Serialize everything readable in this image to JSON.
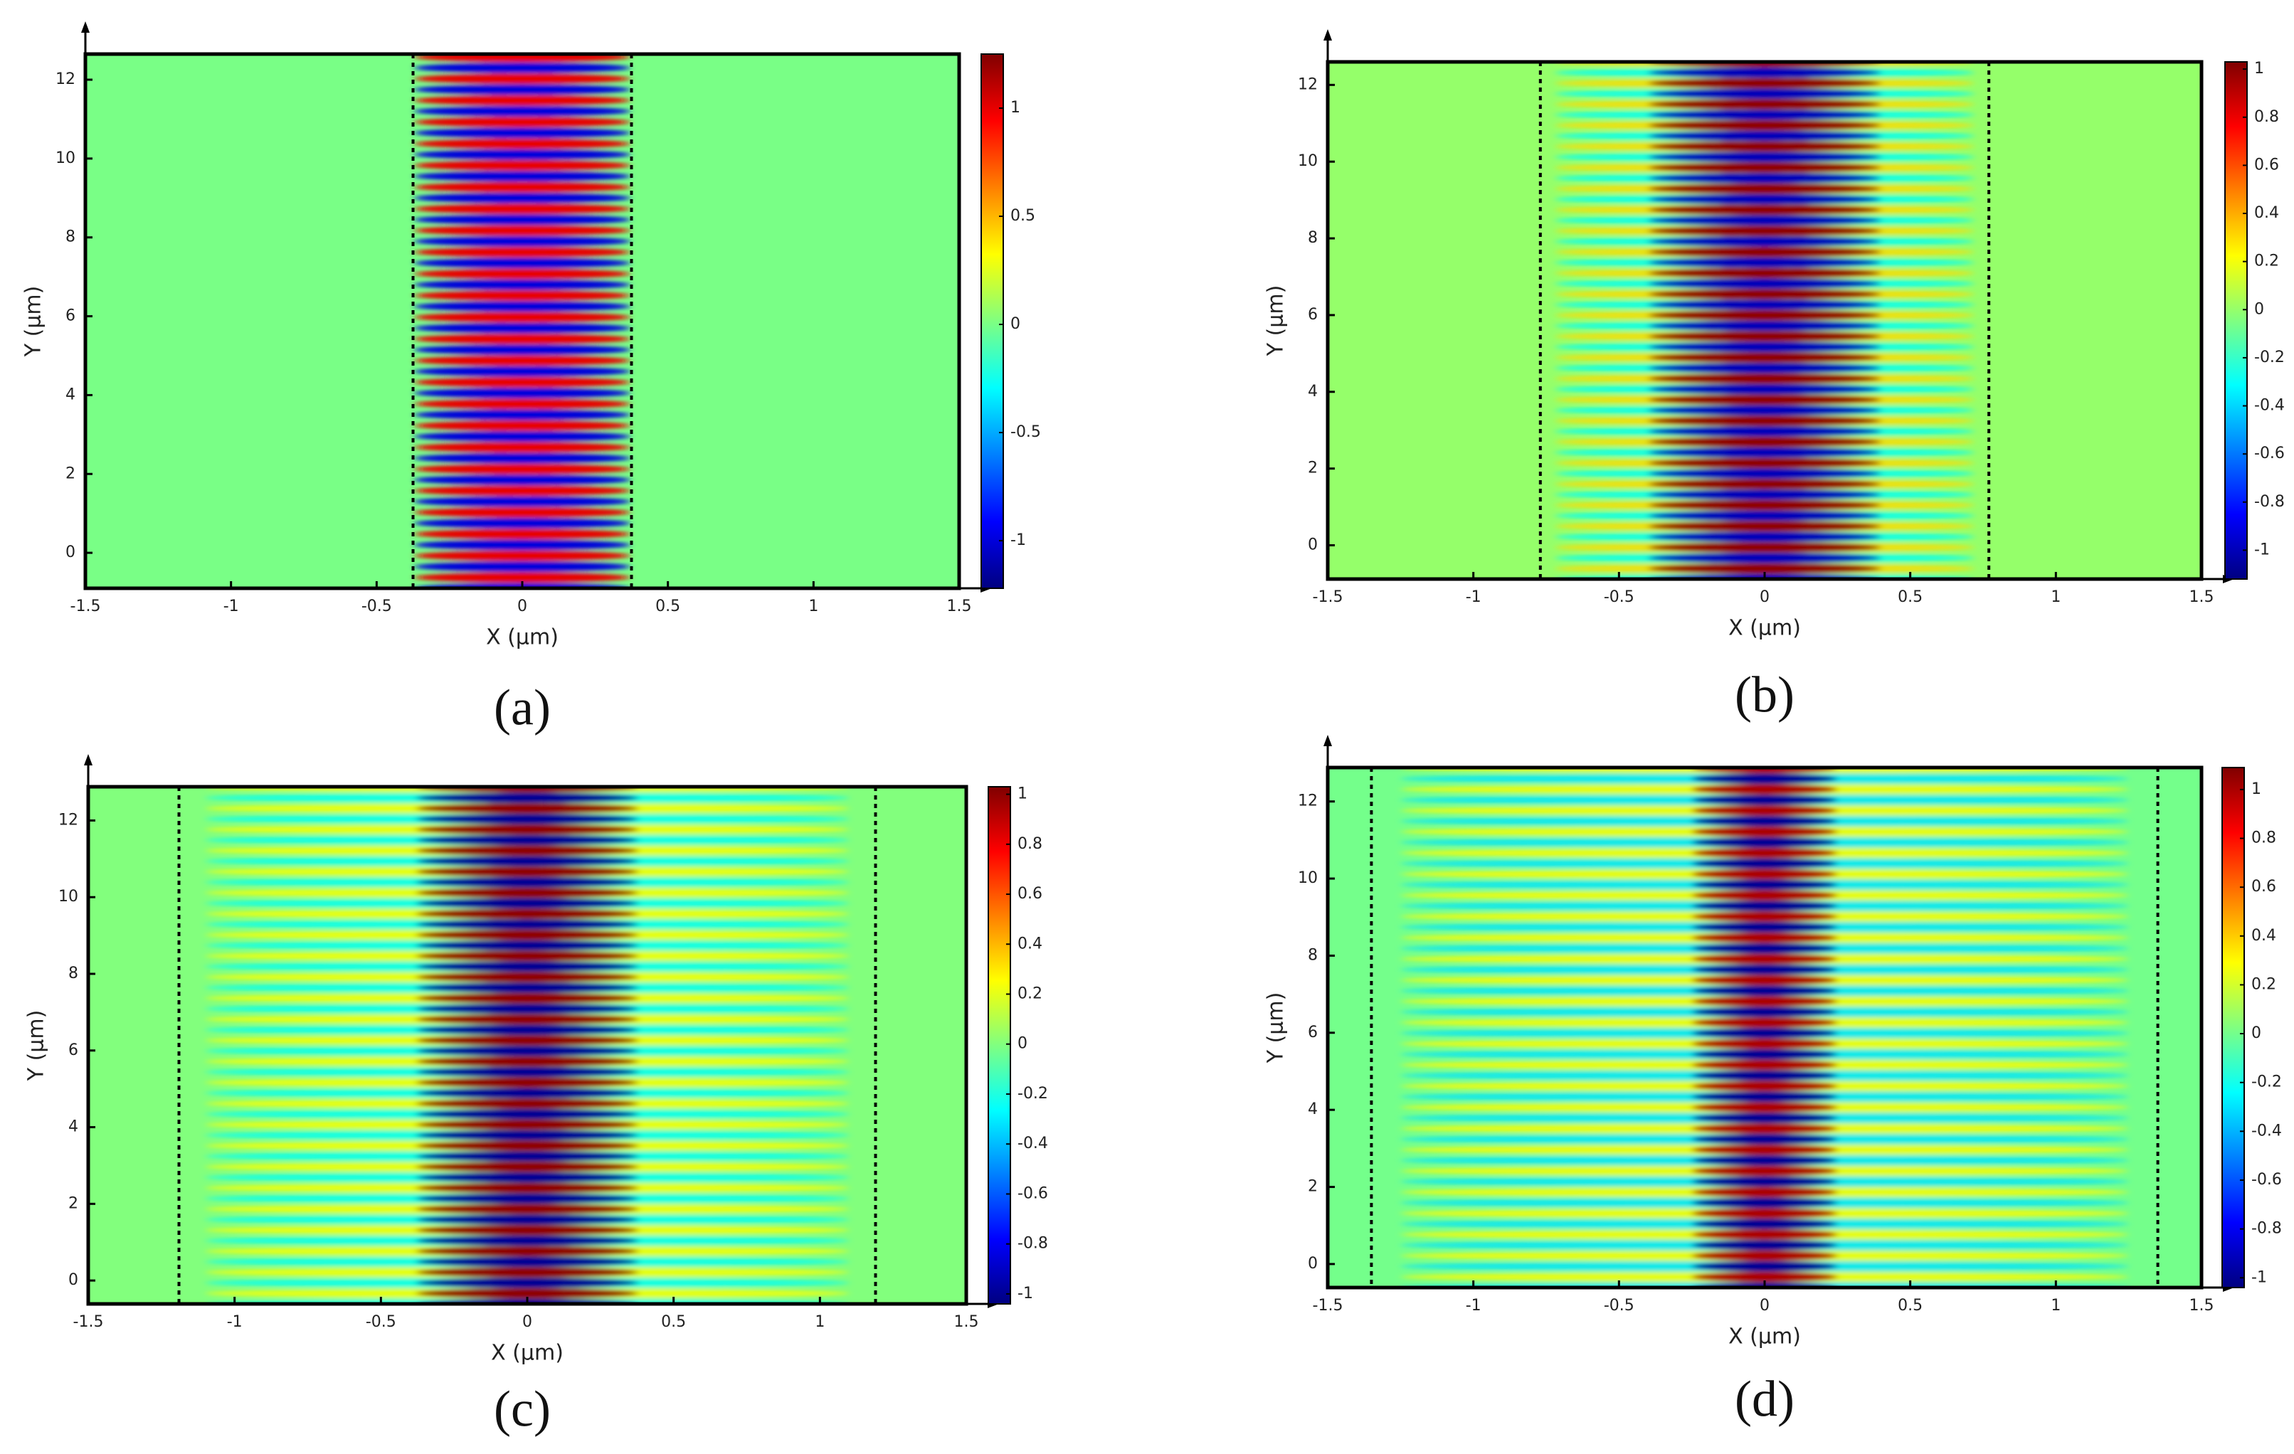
{
  "chart_data": [
    {
      "type": "heatmap",
      "caption": "(a)",
      "xlabel": "X (µm)",
      "ylabel": "Y (µm)",
      "colormap": "jet",
      "xlim": [
        -1.5,
        1.5
      ],
      "xticks": [
        -1.5,
        -1,
        -0.5,
        0,
        0.5,
        1,
        1.5
      ],
      "ylim": [
        -0.9,
        12.65
      ],
      "yticks": [
        0,
        2,
        4,
        6,
        8,
        10,
        12
      ],
      "clim": [
        -1.22,
        1.25
      ],
      "cticks": [
        -1,
        -0.5,
        0,
        0.5,
        1
      ],
      "guides": [
        -0.375,
        0.375
      ],
      "period": 0.55,
      "core": {
        "halfwidth": 0.37,
        "amplitude": 1
      },
      "cladding": {
        "halfwidth": 0.37,
        "amplitude": 0.4
      }
    },
    {
      "type": "heatmap",
      "caption": "(b)",
      "xlabel": "X (µm)",
      "ylabel": "Y (µm)",
      "colormap": "jet",
      "xlim": [
        -1.5,
        1.5
      ],
      "xticks": [
        -1.5,
        -1,
        -0.5,
        0,
        0.5,
        1,
        1.5
      ],
      "ylim": [
        -0.88,
        12.6
      ],
      "yticks": [
        0,
        2,
        4,
        6,
        8,
        10,
        12
      ],
      "clim": [
        -1.12,
        1.03
      ],
      "cticks": [
        -1,
        -0.8,
        -0.6,
        -0.4,
        -0.2,
        0,
        0.2,
        0.4,
        0.6,
        0.8,
        1
      ],
      "guides": [
        -0.77,
        0.77
      ],
      "period": 0.55,
      "core": {
        "halfwidth": 0.4,
        "amplitude": 1
      },
      "cladding": {
        "halfwidth": 0.72,
        "amplitude": 0.3
      }
    },
    {
      "type": "heatmap",
      "caption": "(c)",
      "xlabel": "X (µm)",
      "ylabel": "Y (µm)",
      "colormap": "jet",
      "xlim": [
        -1.5,
        1.5
      ],
      "xticks": [
        -1.5,
        -1,
        -0.5,
        0,
        0.5,
        1,
        1.5
      ],
      "ylim": [
        -0.61,
        12.88
      ],
      "yticks": [
        0,
        2,
        4,
        6,
        8,
        10,
        12
      ],
      "clim": [
        -1.04,
        1.03
      ],
      "cticks": [
        -1,
        -0.8,
        -0.6,
        -0.4,
        -0.2,
        0,
        0.2,
        0.4,
        0.6,
        0.8,
        1
      ],
      "guides": [
        -1.19,
        1.19
      ],
      "period": 0.55,
      "core": {
        "halfwidth": 0.38,
        "amplitude": 1
      },
      "cladding": {
        "halfwidth": 1.1,
        "amplitude": 0.25
      }
    },
    {
      "type": "heatmap",
      "caption": "(d)",
      "xlabel": "X (µm)",
      "ylabel": "Y (µm)",
      "colormap": "jet",
      "xlim": [
        -1.5,
        1.5
      ],
      "xticks": [
        -1.5,
        -1,
        -0.5,
        0,
        0.5,
        1,
        1.5
      ],
      "ylim": [
        -0.61,
        12.88
      ],
      "yticks": [
        0,
        2,
        4,
        6,
        8,
        10,
        12
      ],
      "clim": [
        -1.04,
        1.09
      ],
      "cticks": [
        -1,
        -0.8,
        -0.6,
        -0.4,
        -0.2,
        0,
        0.2,
        0.4,
        0.6,
        0.8,
        1
      ],
      "guides": [
        -1.35,
        1.35
      ],
      "period": 0.55,
      "core": {
        "halfwidth": 0.25,
        "amplitude": 1
      },
      "cladding": {
        "halfwidth": 1.25,
        "amplitude": 0.3
      }
    }
  ]
}
